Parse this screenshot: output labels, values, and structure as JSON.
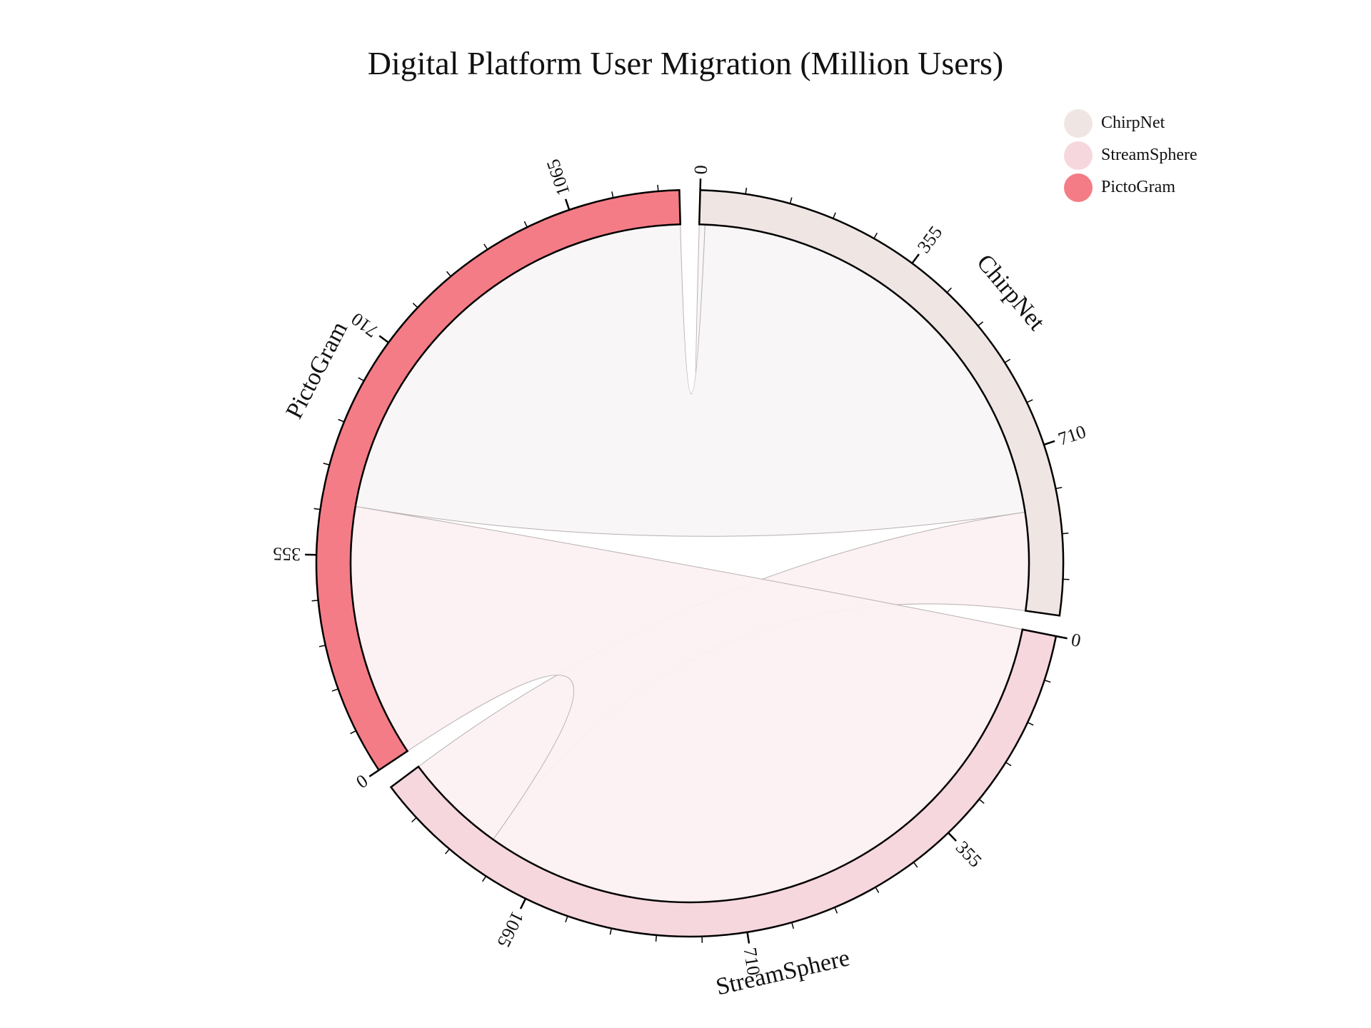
{
  "chart_data": {
    "type": "chord",
    "title": "Digital Platform User Migration (Million Users)",
    "units": "Million Users",
    "groups": [
      {
        "name": "ChirpNet",
        "total": 980,
        "color": "#efe6e4"
      },
      {
        "name": "StreamSphere",
        "total": 1340,
        "color": "#f6d7de"
      },
      {
        "name": "PictoGram",
        "total": 1240,
        "color": "#f47c86"
      }
    ],
    "tick_labels": [
      "0",
      "355",
      "710",
      "1065"
    ],
    "legend": {
      "position": "top-right",
      "items": [
        {
          "name": "ChirpNet",
          "color": "#efe6e4"
        },
        {
          "name": "StreamSphere",
          "color": "#f6d7de"
        },
        {
          "name": "PictoGram",
          "color": "#f47c86"
        }
      ]
    },
    "chords": [
      {
        "source": "ChirpNet",
        "target": "ChirpNet",
        "value": 10,
        "source_range": [
          0,
          10
        ],
        "target_range": [
          0,
          10
        ],
        "fill": "#f8f6f5"
      },
      {
        "source": "ChirpNet",
        "target": "PictoGram",
        "value": 800,
        "source_range": [
          10,
          810
        ],
        "target_range": [
          440,
          1240
        ],
        "fill": "#f8f6f5"
      },
      {
        "source": "ChirpNet",
        "target": "StreamSphere",
        "value": 170,
        "source_range": [
          810,
          980
        ],
        "target_range": [
          1160,
          1340
        ],
        "fill": "#fcf0f2"
      },
      {
        "source": "StreamSphere",
        "target": "PictoGram",
        "value": 1160,
        "source_range": [
          0,
          1160
        ],
        "target_range": [
          0,
          440
        ],
        "fill": "#fcf0f2"
      }
    ]
  }
}
